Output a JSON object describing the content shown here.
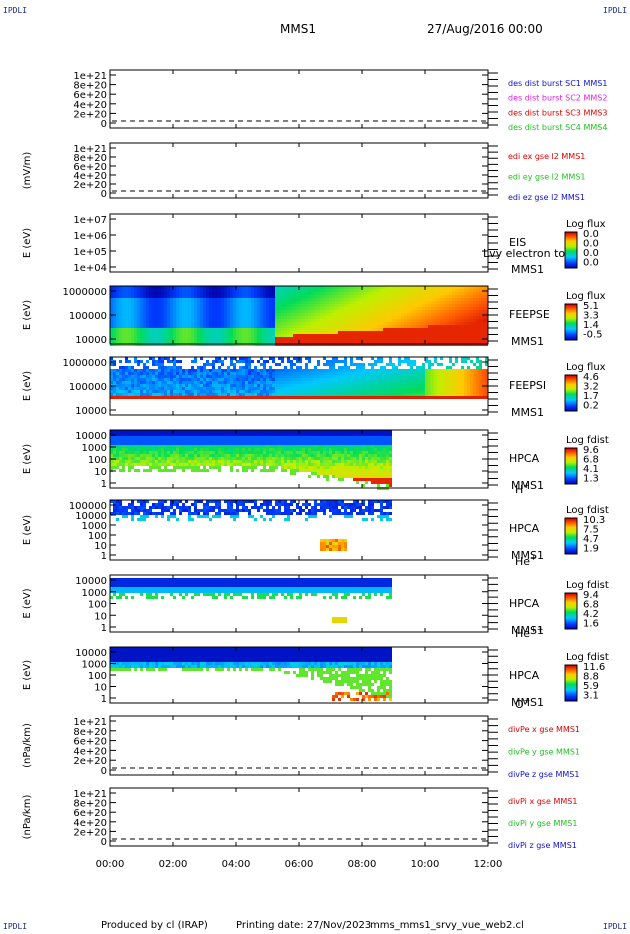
{
  "corner_marks": [
    "IPDLI",
    "IPDLI",
    "IPDLI",
    "IPDLI"
  ],
  "header": {
    "spacecraft": "MMS1",
    "date": "27/Aug/2016 00:00"
  },
  "footer": {
    "produced": "Produced by cl (IRAP)",
    "printing": "Printing date: 27/Nov/2023",
    "script": "mms_mms1_srvy_vue_web2.cl"
  },
  "colors": {
    "red": "#e00000",
    "green": "#20c020",
    "blue": "#1010d0",
    "magenta": "#e020e0"
  },
  "chart_data": [
    {
      "type": "line",
      "yticks": [
        "1e+21",
        "8e+20",
        "6e+20",
        "4e+20",
        "2e+20",
        "0"
      ],
      "ylabel": "",
      "series": [
        {
          "name": "des dist burst SC1 MMS1",
          "color": "#1010d0"
        },
        {
          "name": "des dist burst SC2 MMS2",
          "color": "#e020e0"
        },
        {
          "name": "des dist burst SC3 MMS3",
          "color": "#e00000"
        },
        {
          "name": "des dist burst SC4 MMS4",
          "color": "#20c020"
        }
      ]
    },
    {
      "type": "line",
      "yticks": [
        "1e+21",
        "8e+20",
        "6e+20",
        "4e+20",
        "2e+20",
        "0"
      ],
      "ylabel": "(mV/m)",
      "series": [
        {
          "name": "edi ex gse l2 MMS1",
          "color": "#e00000"
        },
        {
          "name": "edi ey gse l2 MMS1",
          "color": "#20c020"
        },
        {
          "name": "edi ez gse l2 MMS1",
          "color": "#1010d0"
        }
      ]
    },
    {
      "type": "heatmap",
      "yticks": [
        "1e+07",
        "1e+06",
        "1e+05",
        "1e+04"
      ],
      "ylabel": "E (eV)",
      "side_labels": [
        "EIS",
        "MMS1"
      ],
      "overlay_label": "Lvy electron to",
      "colorbar": {
        "title": "Log flux",
        "ticks": [
          "0.0",
          "0.0",
          "0.0",
          "0.0"
        ]
      }
    },
    {
      "type": "heatmap",
      "yticks": [
        "1000000",
        "100000",
        "10000"
      ],
      "ylabel": "E (eV)",
      "side_labels": [
        "FEEPSE",
        "MMS1"
      ],
      "colorbar": {
        "title": "Log flux",
        "ticks": [
          "5.1",
          "3.3",
          "1.4",
          "-0.5"
        ]
      }
    },
    {
      "type": "heatmap",
      "yticks": [
        "1000000",
        "100000",
        "10000"
      ],
      "ylabel": "E (eV)",
      "side_labels": [
        "FEEPSI",
        "MMS1"
      ],
      "colorbar": {
        "title": "Log flux",
        "ticks": [
          "4.6",
          "3.2",
          "1.7",
          "0.2"
        ]
      }
    },
    {
      "type": "heatmap",
      "yticks": [
        "10000",
        "1000",
        "100",
        "10",
        "1"
      ],
      "ylabel": "E (eV)",
      "side_labels": [
        "HPCA",
        "MMS1"
      ],
      "species": "H",
      "species_sup": "+",
      "colorbar": {
        "title": "Log fdist",
        "ticks": [
          "9.6",
          "6.8",
          "4.1",
          "1.3"
        ]
      }
    },
    {
      "type": "heatmap",
      "yticks": [
        "100000",
        "10000",
        "1000",
        "100",
        "10",
        "1"
      ],
      "ylabel": "E (eV)",
      "side_labels": [
        "HPCA",
        "MMS1"
      ],
      "species": "He",
      "species_sup": "+",
      "colorbar": {
        "title": "Log fdist",
        "ticks": [
          "10.3",
          "7.5",
          "4.7",
          "1.9"
        ]
      }
    },
    {
      "type": "heatmap",
      "yticks": [
        "10000",
        "1000",
        "100",
        "10",
        "1"
      ],
      "ylabel": "E (eV)",
      "side_labels": [
        "HPCA",
        "MMS1"
      ],
      "species": "He",
      "species_sup": "++",
      "colorbar": {
        "title": "Log fdist",
        "ticks": [
          "9.4",
          "6.8",
          "4.2",
          "1.6"
        ]
      }
    },
    {
      "type": "heatmap",
      "yticks": [
        "10000",
        "1000",
        "100",
        "10",
        "1"
      ],
      "ylabel": "E (eV)",
      "side_labels": [
        "HPCA",
        "MMS1"
      ],
      "species": "O",
      "species_sup": "+",
      "colorbar": {
        "title": "Log fdist",
        "ticks": [
          "11.6",
          "8.8",
          "5.9",
          "3.1"
        ]
      }
    },
    {
      "type": "line",
      "yticks": [
        "1e+21",
        "8e+20",
        "6e+20",
        "4e+20",
        "2e+20",
        "0"
      ],
      "ylabel": "(nPa/km)",
      "series": [
        {
          "name": "divPe x gse MMS1",
          "color": "#e00000"
        },
        {
          "name": "divPe y gse MMS1",
          "color": "#20c020"
        },
        {
          "name": "divPe z gse MMS1",
          "color": "#1010d0"
        }
      ]
    },
    {
      "type": "line",
      "yticks": [
        "1e+21",
        "8e+20",
        "6e+20",
        "4e+20",
        "2e+20",
        "0"
      ],
      "ylabel": "(nPa/km)",
      "series": [
        {
          "name": "divPi x gse MMS1",
          "color": "#e00000"
        },
        {
          "name": "divPi y gse MMS1",
          "color": "#20c020"
        },
        {
          "name": "divPi z gse MMS1",
          "color": "#1010d0"
        }
      ]
    }
  ],
  "time_axis": {
    "ticks": [
      "00:00",
      "02:00",
      "04:00",
      "06:00",
      "08:00",
      "10:00",
      "12:00"
    ]
  }
}
